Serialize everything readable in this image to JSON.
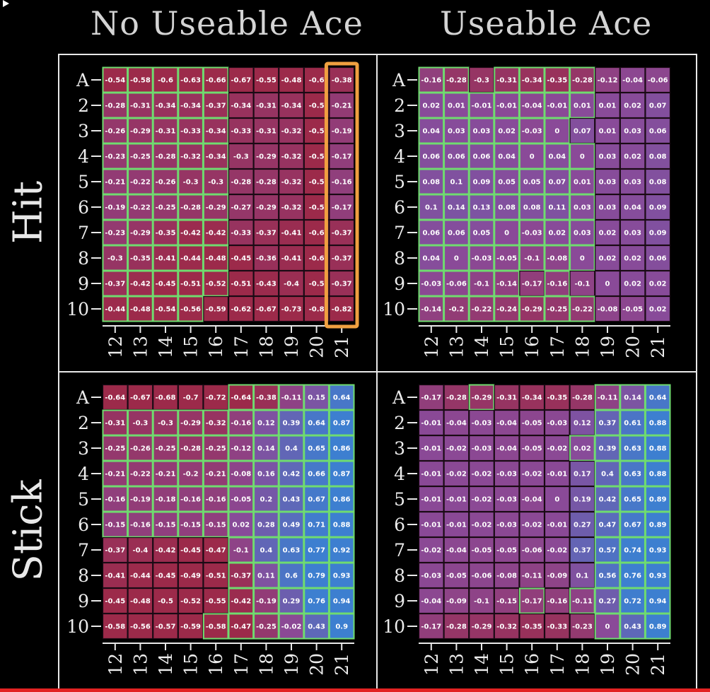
{
  "titles": {
    "col_left": "No Useable Ace",
    "col_right": "Useable Ace",
    "row_top": "Hit",
    "row_bottom": "Stick"
  },
  "colors": {
    "negative": "#9c2a4a",
    "neutral": "#8a4a98",
    "positive": "#3d7fd0",
    "grid_border": "#6fdc6f",
    "cell_border": "#1a0a14",
    "highlight": "#f0a040",
    "progress": "#e22222"
  },
  "video": {
    "progress": 0.0
  },
  "chart_data": [
    {
      "type": "heatmap",
      "title": "",
      "row_title": "Hit",
      "col_title": "No Useable Ace",
      "x": [
        "12",
        "13",
        "14",
        "15",
        "16",
        "17",
        "18",
        "19",
        "20",
        "21"
      ],
      "y": [
        "A",
        "2",
        "3",
        "4",
        "5",
        "6",
        "7",
        "8",
        "9",
        "10"
      ],
      "highlight_column": "21",
      "values": [
        [
          "-0.54",
          "-0.58",
          "-0.6",
          "-0.63",
          "-0.66",
          "-0.67",
          "-0.55",
          "-0.48",
          "-0.6",
          "-0.38"
        ],
        [
          "-0.28",
          "-0.31",
          "-0.34",
          "-0.34",
          "-0.37",
          "-0.34",
          "-0.31",
          "-0.34",
          "-0.5",
          "-0.21"
        ],
        [
          "-0.26",
          "-0.29",
          "-0.31",
          "-0.33",
          "-0.34",
          "-0.33",
          "-0.31",
          "-0.32",
          "-0.5",
          "-0.19"
        ],
        [
          "-0.23",
          "-0.25",
          "-0.28",
          "-0.32",
          "-0.34",
          "-0.3",
          "-0.29",
          "-0.32",
          "-0.5",
          "-0.17"
        ],
        [
          "-0.21",
          "-0.22",
          "-0.26",
          "-0.3",
          "-0.3",
          "-0.28",
          "-0.28",
          "-0.32",
          "-0.5",
          "-0.16"
        ],
        [
          "-0.19",
          "-0.22",
          "-0.25",
          "-0.28",
          "-0.29",
          "-0.27",
          "-0.29",
          "-0.32",
          "-0.5",
          "-0.17"
        ],
        [
          "-0.23",
          "-0.29",
          "-0.35",
          "-0.42",
          "-0.42",
          "-0.33",
          "-0.37",
          "-0.41",
          "-0.6",
          "-0.37"
        ],
        [
          "-0.3",
          "-0.35",
          "-0.41",
          "-0.44",
          "-0.48",
          "-0.45",
          "-0.36",
          "-0.41",
          "-0.6",
          "-0.37"
        ],
        [
          "-0.37",
          "-0.42",
          "-0.45",
          "-0.51",
          "-0.52",
          "-0.51",
          "-0.43",
          "-0.4",
          "-0.5",
          "-0.37"
        ],
        [
          "-0.44",
          "-0.48",
          "-0.54",
          "-0.56",
          "-0.59",
          "-0.62",
          "-0.67",
          "-0.73",
          "-0.8",
          "-0.82"
        ]
      ],
      "best_action": [
        [
          1,
          1,
          1,
          1,
          1,
          0,
          0,
          0,
          0,
          0
        ],
        [
          1,
          1,
          1,
          1,
          1,
          0,
          0,
          0,
          0,
          0
        ],
        [
          1,
          1,
          1,
          1,
          1,
          0,
          0,
          0,
          0,
          0
        ],
        [
          1,
          1,
          1,
          1,
          1,
          0,
          0,
          0,
          0,
          0
        ],
        [
          1,
          1,
          1,
          1,
          1,
          0,
          0,
          0,
          0,
          0
        ],
        [
          1,
          1,
          1,
          1,
          1,
          0,
          0,
          0,
          0,
          0
        ],
        [
          1,
          1,
          1,
          1,
          1,
          0,
          0,
          0,
          0,
          0
        ],
        [
          1,
          1,
          1,
          1,
          1,
          0,
          0,
          0,
          0,
          0
        ],
        [
          1,
          1,
          1,
          1,
          1,
          0,
          0,
          0,
          0,
          0
        ],
        [
          1,
          1,
          1,
          1,
          0,
          0,
          0,
          0,
          0,
          0
        ]
      ]
    },
    {
      "type": "heatmap",
      "title": "",
      "row_title": "Hit",
      "col_title": "Useable Ace",
      "x": [
        "12",
        "13",
        "14",
        "15",
        "16",
        "17",
        "18",
        "19",
        "20",
        "21"
      ],
      "y": [
        "A",
        "2",
        "3",
        "4",
        "5",
        "6",
        "7",
        "8",
        "9",
        "10"
      ],
      "values": [
        [
          "-0.16",
          "-0.28",
          "-0.3",
          "-0.31",
          "-0.34",
          "-0.35",
          "-0.28",
          "-0.12",
          "-0.04",
          "-0.06"
        ],
        [
          "0.02",
          "0.01",
          "-0.01",
          "-0.01",
          "-0.04",
          "-0.01",
          "0.01",
          "0.01",
          "0.02",
          "0.07"
        ],
        [
          "0.04",
          "0.03",
          "0.03",
          "0.02",
          "-0.03",
          "0",
          "0.07",
          "0.01",
          "0.03",
          "0.06"
        ],
        [
          "0.06",
          "0.06",
          "0.06",
          "0.04",
          "0",
          "0.04",
          "0",
          "0.03",
          "0.02",
          "0.08"
        ],
        [
          "0.08",
          "0.1",
          "0.09",
          "0.05",
          "0.05",
          "0.07",
          "0.01",
          "0.03",
          "0.03",
          "0.08"
        ],
        [
          "0.1",
          "0.14",
          "0.13",
          "0.08",
          "0.08",
          "0.11",
          "0.03",
          "0.03",
          "0.04",
          "0.09"
        ],
        [
          "0.06",
          "0.06",
          "0.05",
          "0",
          "-0.03",
          "0.02",
          "0.03",
          "0.02",
          "0.03",
          "0.09"
        ],
        [
          "0.04",
          "0",
          "-0.03",
          "-0.05",
          "-0.1",
          "-0.08",
          "0",
          "0.02",
          "0.02",
          "0.06"
        ],
        [
          "-0.03",
          "-0.06",
          "-0.1",
          "-0.14",
          "-0.17",
          "-0.16",
          "-0.1",
          "0",
          "0.02",
          "0.02"
        ],
        [
          "-0.14",
          "-0.2",
          "-0.22",
          "-0.24",
          "-0.29",
          "-0.25",
          "-0.22",
          "-0.08",
          "-0.05",
          "0.02"
        ]
      ],
      "best_action": [
        [
          1,
          1,
          0,
          1,
          1,
          1,
          1,
          0,
          0,
          0
        ],
        [
          1,
          1,
          1,
          1,
          1,
          1,
          1,
          0,
          0,
          0
        ],
        [
          1,
          1,
          1,
          1,
          1,
          1,
          0,
          0,
          0,
          0
        ],
        [
          1,
          1,
          1,
          1,
          1,
          1,
          1,
          0,
          0,
          0
        ],
        [
          1,
          1,
          1,
          1,
          1,
          1,
          1,
          0,
          0,
          0
        ],
        [
          1,
          1,
          1,
          1,
          1,
          1,
          1,
          0,
          0,
          0
        ],
        [
          1,
          1,
          1,
          1,
          1,
          1,
          1,
          0,
          0,
          0
        ],
        [
          1,
          1,
          1,
          1,
          1,
          1,
          1,
          0,
          0,
          0
        ],
        [
          1,
          1,
          1,
          1,
          0,
          1,
          0,
          0,
          0,
          0
        ],
        [
          1,
          1,
          1,
          1,
          1,
          1,
          1,
          0,
          0,
          0
        ]
      ]
    },
    {
      "type": "heatmap",
      "title": "",
      "row_title": "Stick",
      "col_title": "No Useable Ace",
      "x": [
        "12",
        "13",
        "14",
        "15",
        "16",
        "17",
        "18",
        "19",
        "20",
        "21"
      ],
      "y": [
        "A",
        "2",
        "3",
        "4",
        "5",
        "6",
        "7",
        "8",
        "9",
        "10"
      ],
      "values": [
        [
          "-0.64",
          "-0.67",
          "-0.68",
          "-0.7",
          "-0.72",
          "-0.64",
          "-0.38",
          "-0.11",
          "0.15",
          "0.64"
        ],
        [
          "-0.31",
          "-0.3",
          "-0.3",
          "-0.29",
          "-0.32",
          "-0.16",
          "0.12",
          "0.39",
          "0.64",
          "0.87"
        ],
        [
          "-0.25",
          "-0.26",
          "-0.25",
          "-0.28",
          "-0.25",
          "-0.12",
          "0.14",
          "0.4",
          "0.65",
          "0.86"
        ],
        [
          "-0.21",
          "-0.22",
          "-0.21",
          "-0.2",
          "-0.21",
          "-0.08",
          "0.16",
          "0.42",
          "0.66",
          "0.87"
        ],
        [
          "-0.16",
          "-0.19",
          "-0.18",
          "-0.16",
          "-0.16",
          "-0.05",
          "0.2",
          "0.43",
          "0.67",
          "0.86"
        ],
        [
          "-0.15",
          "-0.16",
          "-0.15",
          "-0.15",
          "-0.15",
          "0.02",
          "0.28",
          "0.49",
          "0.71",
          "0.88"
        ],
        [
          "-0.37",
          "-0.4",
          "-0.42",
          "-0.45",
          "-0.47",
          "-0.1",
          "0.4",
          "0.63",
          "0.77",
          "0.92"
        ],
        [
          "-0.41",
          "-0.44",
          "-0.45",
          "-0.49",
          "-0.51",
          "-0.37",
          "0.11",
          "0.6",
          "0.79",
          "0.93"
        ],
        [
          "-0.45",
          "-0.48",
          "-0.5",
          "-0.52",
          "-0.55",
          "-0.42",
          "-0.19",
          "0.29",
          "0.76",
          "0.94"
        ],
        [
          "-0.58",
          "-0.56",
          "-0.57",
          "-0.59",
          "-0.58",
          "-0.47",
          "-0.25",
          "-0.02",
          "0.43",
          "0.9"
        ]
      ],
      "best_action": [
        [
          0,
          0,
          0,
          0,
          0,
          1,
          1,
          1,
          1,
          1
        ],
        [
          1,
          1,
          1,
          1,
          1,
          1,
          1,
          1,
          1,
          1
        ],
        [
          1,
          1,
          1,
          1,
          1,
          1,
          1,
          1,
          1,
          1
        ],
        [
          1,
          1,
          1,
          1,
          1,
          1,
          1,
          1,
          1,
          1
        ],
        [
          1,
          1,
          1,
          1,
          1,
          1,
          1,
          1,
          1,
          1
        ],
        [
          1,
          1,
          1,
          1,
          1,
          1,
          1,
          1,
          1,
          1
        ],
        [
          0,
          0,
          0,
          0,
          0,
          1,
          1,
          1,
          1,
          1
        ],
        [
          0,
          0,
          0,
          0,
          0,
          1,
          1,
          1,
          1,
          1
        ],
        [
          0,
          0,
          0,
          0,
          0,
          1,
          1,
          1,
          1,
          1
        ],
        [
          0,
          0,
          0,
          0,
          1,
          1,
          1,
          1,
          1,
          1
        ]
      ]
    },
    {
      "type": "heatmap",
      "title": "",
      "row_title": "Stick",
      "col_title": "Useable Ace",
      "x": [
        "12",
        "13",
        "14",
        "15",
        "16",
        "17",
        "18",
        "19",
        "20",
        "21"
      ],
      "y": [
        "A",
        "2",
        "3",
        "4",
        "5",
        "6",
        "7",
        "8",
        "9",
        "10"
      ],
      "values": [
        [
          "-0.17",
          "-0.28",
          "-0.29",
          "-0.31",
          "-0.34",
          "-0.35",
          "-0.28",
          "-0.11",
          "0.14",
          "0.64"
        ],
        [
          "-0.01",
          "-0.04",
          "-0.03",
          "-0.04",
          "-0.05",
          "-0.03",
          "0.12",
          "0.37",
          "0.61",
          "0.88"
        ],
        [
          "-0.01",
          "-0.02",
          "-0.03",
          "-0.04",
          "-0.05",
          "-0.02",
          "0.02",
          "0.39",
          "0.63",
          "0.88"
        ],
        [
          "-0.01",
          "-0.02",
          "-0.02",
          "-0.03",
          "-0.02",
          "-0.01",
          "0.17",
          "0.4",
          "0.63",
          "0.88"
        ],
        [
          "-0.01",
          "-0.01",
          "-0.02",
          "-0.03",
          "-0.04",
          "0",
          "0.19",
          "0.42",
          "0.65",
          "0.89"
        ],
        [
          "-0.01",
          "-0.01",
          "-0.02",
          "-0.03",
          "-0.02",
          "-0.01",
          "0.27",
          "0.47",
          "0.67",
          "0.89"
        ],
        [
          "-0.02",
          "-0.04",
          "-0.05",
          "-0.05",
          "-0.06",
          "-0.02",
          "0.37",
          "0.57",
          "0.74",
          "0.93"
        ],
        [
          "-0.03",
          "-0.05",
          "-0.06",
          "-0.08",
          "-0.11",
          "-0.09",
          "0.1",
          "0.56",
          "0.76",
          "0.93"
        ],
        [
          "-0.04",
          "-0.09",
          "-0.1",
          "-0.15",
          "-0.17",
          "-0.16",
          "-0.11",
          "0.27",
          "0.72",
          "0.94"
        ],
        [
          "-0.17",
          "-0.28",
          "-0.29",
          "-0.32",
          "-0.35",
          "-0.33",
          "-0.23",
          "0",
          "0.43",
          "0.89"
        ]
      ],
      "best_action": [
        [
          0,
          0,
          1,
          0,
          0,
          0,
          0,
          1,
          1,
          1
        ],
        [
          0,
          0,
          0,
          0,
          0,
          0,
          0,
          1,
          1,
          1
        ],
        [
          0,
          0,
          0,
          0,
          0,
          0,
          1,
          1,
          1,
          1
        ],
        [
          0,
          0,
          0,
          0,
          0,
          0,
          0,
          1,
          1,
          1
        ],
        [
          0,
          0,
          0,
          0,
          0,
          0,
          0,
          1,
          1,
          1
        ],
        [
          0,
          0,
          0,
          0,
          0,
          0,
          0,
          1,
          1,
          1
        ],
        [
          0,
          0,
          0,
          0,
          0,
          0,
          0,
          1,
          1,
          1
        ],
        [
          0,
          0,
          0,
          0,
          0,
          0,
          0,
          1,
          1,
          1
        ],
        [
          0,
          0,
          0,
          0,
          1,
          0,
          1,
          1,
          1,
          1
        ],
        [
          0,
          0,
          0,
          0,
          0,
          0,
          0,
          1,
          1,
          1
        ]
      ]
    }
  ]
}
